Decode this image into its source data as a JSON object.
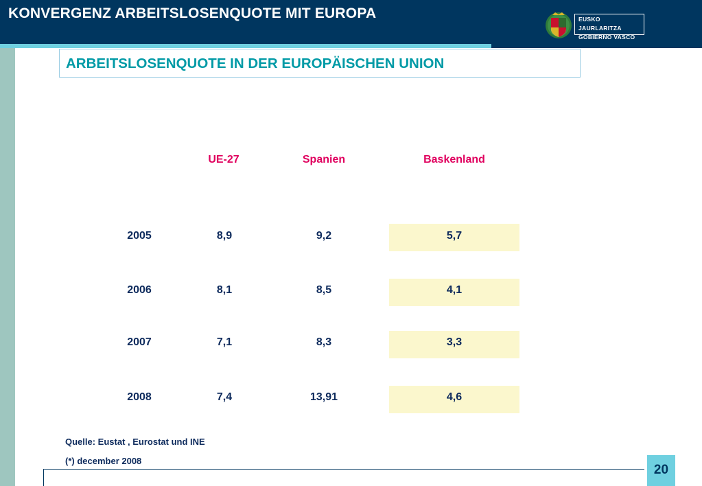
{
  "header": {
    "title": "KONVERGENZ ARBEITSLOSENQUOTE MIT EUROPA",
    "logo_text_line1": "EUSKO JAURLARITZA",
    "logo_text_line2": "GOBIERNO VASCO"
  },
  "subtitle": "ARBEITSLOSENQUOTE IN DER EUROPÄISCHEN UNION",
  "table": {
    "columns": [
      "UE-27",
      "Spanien",
      "Baskenland"
    ],
    "rows": [
      {
        "year": "2005",
        "ue27": "8,9",
        "spanien": "9,2",
        "baskenland": "5,7"
      },
      {
        "year": "2006",
        "ue27": "8,1",
        "spanien": "8,5",
        "baskenland": "4,1"
      },
      {
        "year": "2007",
        "ue27": "7,1",
        "spanien": "8,3",
        "baskenland": "3,3"
      },
      {
        "year": "2008",
        "ue27": "7,4",
        "spanien": "13,91",
        "baskenland": "4,6"
      }
    ]
  },
  "notes": {
    "source": "Quelle: Eustat , Eurostat und INE",
    "footnote": "(*) december 2008"
  },
  "page_number": "20",
  "colors": {
    "header_bg": "#00365f",
    "accent_cyan": "#6fd0e0",
    "subtitle": "#009aa6",
    "column_header": "#e0005e",
    "cell_text": "#0d2a5c",
    "highlight": "#fbf7cd"
  }
}
